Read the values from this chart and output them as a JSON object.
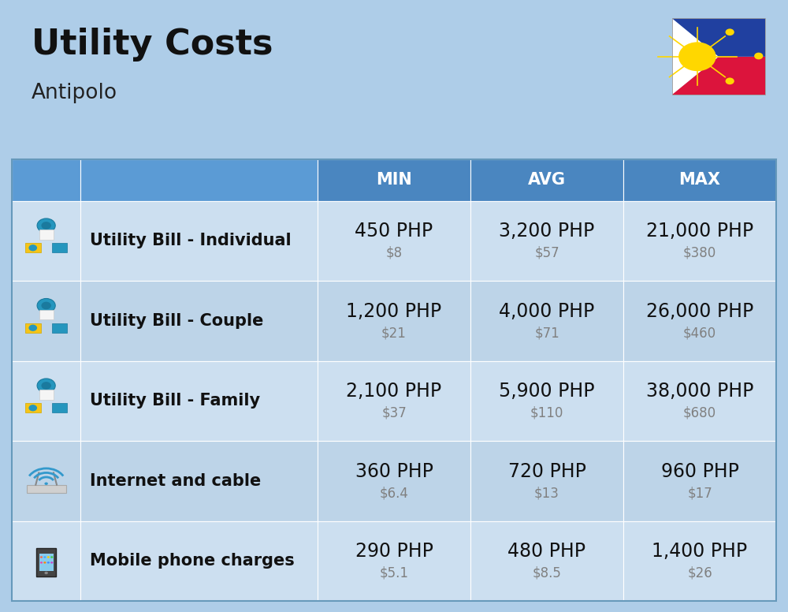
{
  "title": "Utility Costs",
  "subtitle": "Antipolo",
  "background_color": "#aecde8",
  "header_color": "#4a90c4",
  "header_text_color": "#ffffff",
  "row_colors": [
    "#ccdff0",
    "#b8d0e8"
  ],
  "icon_col_header_color": "#7aaecc",
  "label_col_header_color": "#7aaecc",
  "cell_line_color": "#ffffff",
  "headers": [
    "MIN",
    "AVG",
    "MAX"
  ],
  "rows": [
    {
      "label": "Utility Bill - Individual",
      "min_php": "450 PHP",
      "min_usd": "$8",
      "avg_php": "3,200 PHP",
      "avg_usd": "$57",
      "max_php": "21,000 PHP",
      "max_usd": "$380"
    },
    {
      "label": "Utility Bill - Couple",
      "min_php": "1,200 PHP",
      "min_usd": "$21",
      "avg_php": "4,000 PHP",
      "avg_usd": "$71",
      "max_php": "26,000 PHP",
      "max_usd": "$460"
    },
    {
      "label": "Utility Bill - Family",
      "min_php": "2,100 PHP",
      "min_usd": "$37",
      "avg_php": "5,900 PHP",
      "avg_usd": "$110",
      "max_php": "38,000 PHP",
      "max_usd": "$680"
    },
    {
      "label": "Internet and cable",
      "min_php": "360 PHP",
      "min_usd": "$6.4",
      "avg_php": "720 PHP",
      "avg_usd": "$13",
      "max_php": "960 PHP",
      "max_usd": "$17"
    },
    {
      "label": "Mobile phone charges",
      "min_php": "290 PHP",
      "min_usd": "$5.1",
      "avg_php": "480 PHP",
      "avg_usd": "$8.5",
      "max_php": "1,400 PHP",
      "max_usd": "$26"
    }
  ],
  "title_fontsize": 32,
  "subtitle_fontsize": 19,
  "header_fontsize": 15,
  "cell_php_fontsize": 17,
  "cell_usd_fontsize": 12,
  "label_fontsize": 15
}
